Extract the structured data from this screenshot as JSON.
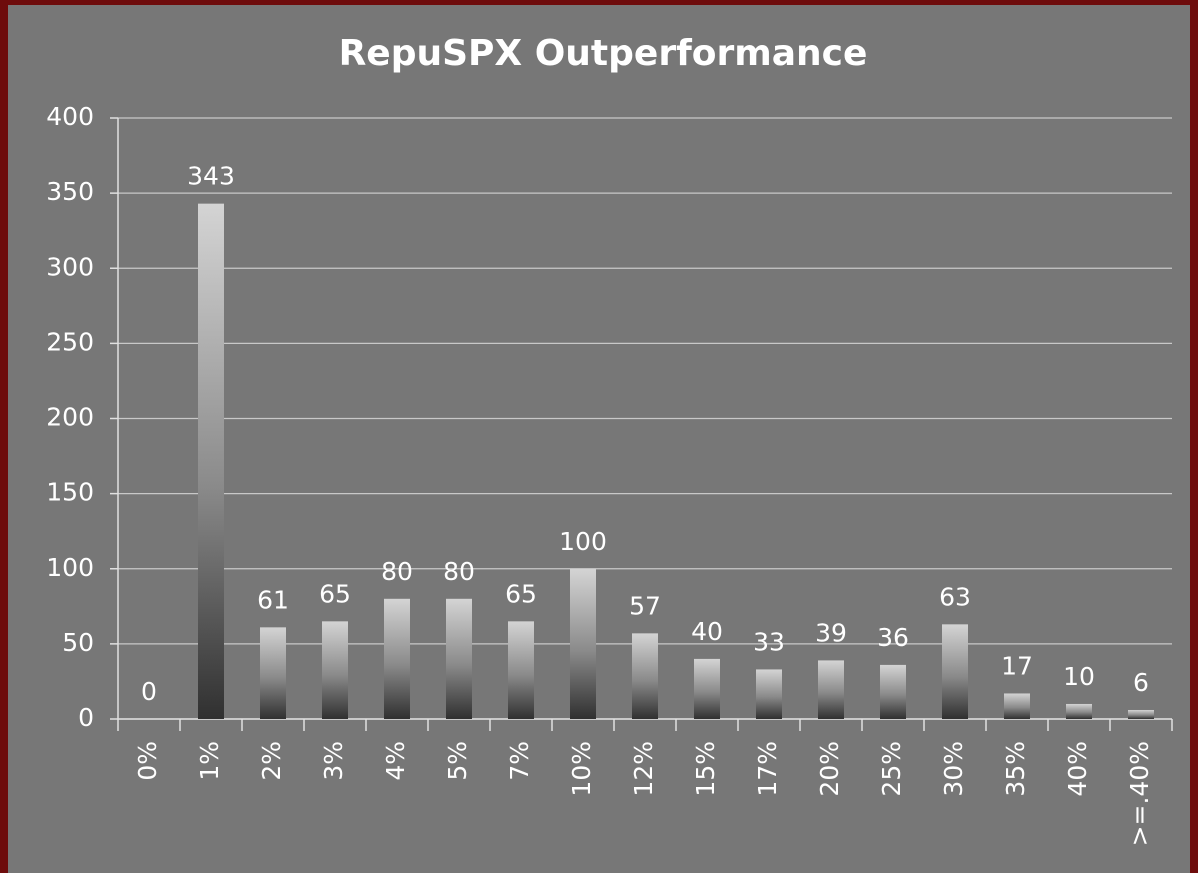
{
  "chart_data": {
    "type": "bar",
    "title": "RepuSPX Outperformance",
    "categories": [
      "0%",
      "1%",
      "2%",
      "3%",
      "4%",
      "5%",
      "7%",
      "10%",
      "12%",
      "15%",
      "17%",
      "20%",
      "25%",
      "30%",
      "35%",
      "40%",
      ">=.40%"
    ],
    "values": [
      0,
      343,
      61,
      65,
      80,
      80,
      65,
      100,
      57,
      40,
      33,
      39,
      36,
      63,
      17,
      10,
      6
    ],
    "ylim": [
      0,
      400
    ],
    "yticks": [
      0,
      50,
      100,
      150,
      200,
      250,
      300,
      350,
      400
    ],
    "grid": true
  }
}
